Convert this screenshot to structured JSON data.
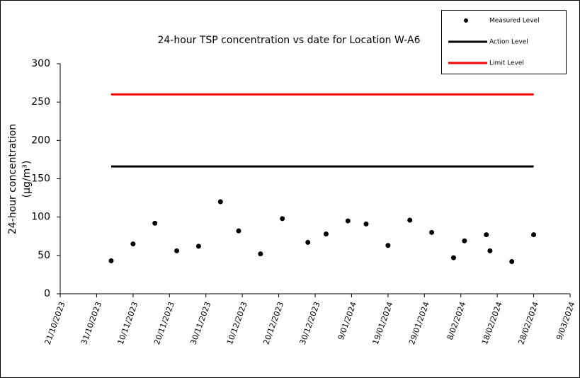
{
  "chart_data": {
    "type": "scatter",
    "title": "24-hour TSP concentration vs date for Location W-A6",
    "y_label": [
      "24-hour concentration",
      "(μg/m³)"
    ],
    "xlim": [
      "2023-10-21",
      "2024-03-09"
    ],
    "xticks": [
      {
        "value": "2023-10-21",
        "label": "21/10/2023"
      },
      {
        "value": "2023-10-31",
        "label": "31/10/2023"
      },
      {
        "value": "2023-11-10",
        "label": "10/11/2023"
      },
      {
        "value": "2023-11-20",
        "label": "20/11/2023"
      },
      {
        "value": "2023-11-30",
        "label": "30/11/2023"
      },
      {
        "value": "2023-12-10",
        "label": "10/12/2023"
      },
      {
        "value": "2023-12-20",
        "label": "20/12/2023"
      },
      {
        "value": "2023-12-30",
        "label": "30/12/2023"
      },
      {
        "value": "2024-01-09",
        "label": "9/01/2024"
      },
      {
        "value": "2024-01-19",
        "label": "19/01/2024"
      },
      {
        "value": "2024-01-29",
        "label": "29/01/2024"
      },
      {
        "value": "2024-02-08",
        "label": "8/02/2024"
      },
      {
        "value": "2024-02-18",
        "label": "18/02/2024"
      },
      {
        "value": "2024-02-28",
        "label": "28/02/2024"
      },
      {
        "value": "2024-03-09",
        "label": "9/03/2024"
      }
    ],
    "ylim": [
      0,
      300
    ],
    "yticks": [
      0,
      50,
      100,
      150,
      200,
      250,
      300
    ],
    "grid": false,
    "legend": "top-right",
    "series": [
      {
        "name": "Measured Level",
        "color": "#000000",
        "mode": "markers",
        "x": [
          "2023-11-04",
          "2023-11-10",
          "2023-11-16",
          "2023-11-22",
          "2023-11-28",
          "2023-12-04",
          "2023-12-09",
          "2023-12-15",
          "2023-12-21",
          "2023-12-28",
          "2024-01-02",
          "2024-01-08",
          "2024-01-13",
          "2024-01-19",
          "2024-01-25",
          "2024-01-31",
          "2024-02-06",
          "2024-02-09",
          "2024-02-15",
          "2024-02-16",
          "2024-02-22",
          "2024-02-28"
        ],
        "values": [
          43,
          65,
          92,
          56,
          62,
          120,
          82,
          52,
          98,
          67,
          78,
          95,
          91,
          63,
          96,
          80,
          47,
          69,
          77,
          56,
          42,
          77
        ]
      },
      {
        "name": "Action Level",
        "color": "#000000",
        "mode": "line",
        "x": [
          "2023-11-04",
          "2024-02-28"
        ],
        "values": [
          166,
          166
        ]
      },
      {
        "name": "Limit Level",
        "color": "#ff0000",
        "mode": "line",
        "x": [
          "2023-11-04",
          "2024-02-28"
        ],
        "values": [
          260,
          260
        ]
      }
    ]
  }
}
